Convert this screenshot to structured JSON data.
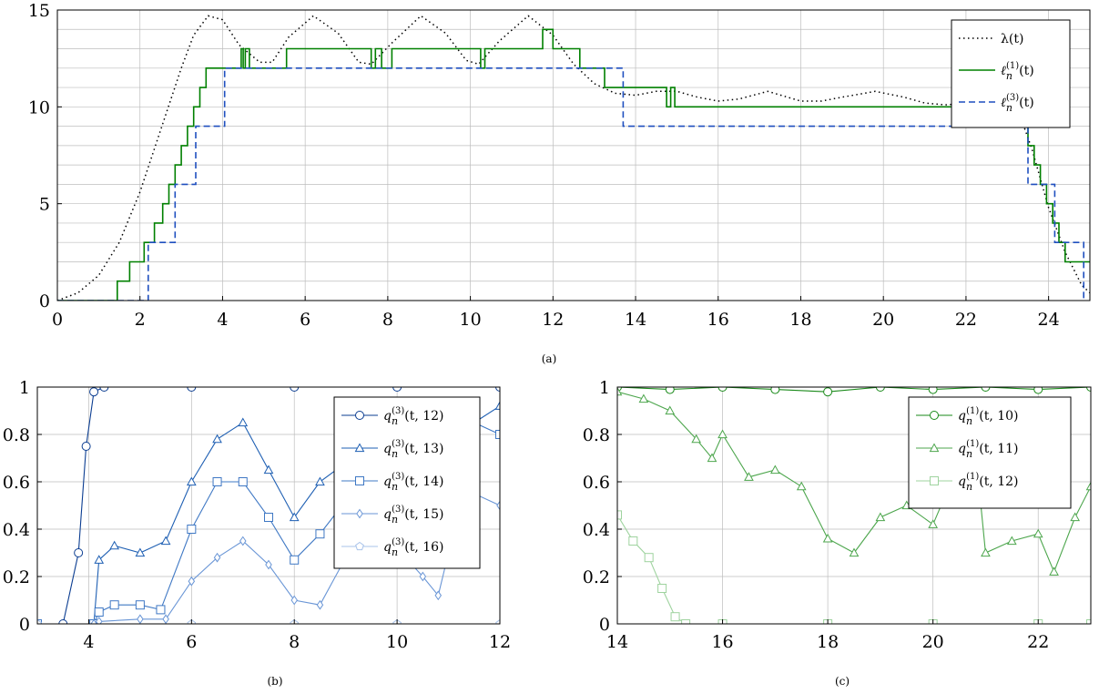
{
  "captions": {
    "a": "(a)",
    "b": "(b)",
    "c": "(c)"
  },
  "chart_data": [
    {
      "id": "a",
      "type": "line",
      "caption": "(a)",
      "xlim": [
        0,
        25
      ],
      "ylim": [
        0,
        15
      ],
      "xticks": [
        0,
        2,
        4,
        6,
        8,
        10,
        12,
        14,
        16,
        18,
        20,
        22,
        24
      ],
      "yticks": [
        0,
        5,
        10,
        15
      ],
      "grid": true,
      "legend_position": "top-right",
      "series": [
        {
          "name": "λ(t)",
          "style": "dotted",
          "color": "#000000",
          "x": [
            0,
            0.5,
            1,
            1.5,
            2,
            2.5,
            3,
            3.3,
            3.65,
            4,
            4.4,
            4.9,
            5.2,
            5.6,
            6.2,
            6.8,
            7.3,
            7.6,
            8.1,
            8.8,
            9.4,
            9.9,
            10.2,
            10.7,
            11.4,
            12,
            12.5,
            13,
            13.5,
            14,
            14.5,
            15,
            15.5,
            16,
            16.5,
            17.2,
            18,
            18.5,
            19,
            19.8,
            20.5,
            21,
            21.5,
            22,
            22.5,
            23,
            23.3,
            23.6,
            24,
            24.4,
            24.8,
            25
          ],
          "y": [
            0,
            0.4,
            1.3,
            3,
            5.6,
            8.8,
            12,
            13.7,
            14.7,
            14.5,
            13.2,
            12.3,
            12.3,
            13.6,
            14.7,
            13.8,
            12.3,
            12.2,
            13.3,
            14.7,
            13.8,
            12.4,
            12.2,
            13.4,
            14.7,
            13.7,
            12.2,
            11.2,
            10.7,
            10.6,
            10.8,
            10.8,
            10.5,
            10.3,
            10.4,
            10.8,
            10.3,
            10.3,
            10.5,
            10.8,
            10.5,
            10.2,
            10.1,
            10.2,
            10.4,
            10.6,
            9.6,
            7.8,
            4.8,
            2.5,
            0.8,
            0.4
          ]
        },
        {
          "name": "ℓn(1)(t)",
          "style": "solid",
          "color": "#008000",
          "x": [
            0,
            1.45,
            1.45,
            1.75,
            1.75,
            2.1,
            2.1,
            2.35,
            2.35,
            2.55,
            2.55,
            2.7,
            2.7,
            2.85,
            2.85,
            3,
            3,
            3.15,
            3.15,
            3.3,
            3.3,
            3.45,
            3.45,
            3.6,
            3.6,
            3.75,
            3.75,
            3.9,
            3.9,
            4.45,
            4.45,
            4.5,
            4.5,
            4.55,
            4.55,
            4.65,
            4.65,
            5.55,
            5.55,
            7.6,
            7.6,
            7.7,
            7.7,
            7.85,
            7.85,
            8.1,
            8.1,
            10.25,
            10.25,
            10.35,
            10.35,
            11.75,
            11.75,
            12,
            12,
            12.65,
            12.65,
            13.25,
            13.25,
            13.65,
            13.65,
            14.75,
            14.75,
            14.85,
            14.85,
            14.95,
            14.95,
            23.2,
            23.2,
            23.5,
            23.5,
            23.65,
            23.65,
            23.8,
            23.8,
            23.95,
            23.95,
            24.1,
            24.1,
            24.25,
            24.25,
            24.4,
            24.4,
            24.55,
            24.55,
            24.7,
            24.7,
            24.85,
            24.85,
            25
          ],
          "y": [
            0,
            0,
            1,
            1,
            2,
            2,
            3,
            3,
            4,
            4,
            5,
            5,
            6,
            6,
            7,
            7,
            8,
            8,
            9,
            9,
            10,
            10,
            11,
            11,
            12,
            12,
            12,
            12,
            12,
            12,
            13,
            13,
            12,
            12,
            13,
            13,
            12,
            12,
            13,
            13,
            12,
            12,
            13,
            13,
            12,
            12,
            13,
            13,
            12,
            12,
            13,
            13,
            14,
            14,
            13,
            13,
            12,
            12,
            11,
            11,
            11,
            11,
            10,
            10,
            11,
            11,
            10,
            10,
            9,
            9,
            8,
            8,
            7,
            7,
            6,
            6,
            5,
            5,
            4,
            4,
            3,
            3,
            2,
            2,
            2,
            2,
            2,
            2,
            2,
            2
          ]
        },
        {
          "name": "ℓn(3)(t)",
          "style": "dashed",
          "color": "#1f4fbf",
          "x": [
            0,
            2.2,
            2.2,
            2.85,
            2.85,
            3.35,
            3.35,
            4.05,
            4.05,
            13.7,
            13.7,
            23.5,
            23.5,
            24.15,
            24.15,
            24.85,
            24.85
          ],
          "y": [
            0,
            0,
            3,
            3,
            6,
            6,
            9,
            9,
            12,
            12,
            9,
            9,
            6,
            6,
            3,
            3,
            0
          ]
        }
      ]
    },
    {
      "id": "b",
      "type": "line",
      "caption": "(b)",
      "xlim": [
        3,
        12
      ],
      "ylim": [
        0,
        1
      ],
      "xticks": [
        4,
        6,
        8,
        10,
        12
      ],
      "yticks": [
        0,
        0.2,
        0.4,
        0.6,
        0.8,
        1
      ],
      "grid": true,
      "legend_position": "top-right",
      "series": [
        {
          "name": "qn(3)(t, 12)",
          "color": "#0b3d91",
          "marker": "circle",
          "x": [
            3,
            3.5,
            3.8,
            3.95,
            4.1,
            4.3,
            6,
            8,
            10,
            12
          ],
          "y": [
            0,
            0,
            0.3,
            0.75,
            0.98,
            1,
            1,
            1,
            1,
            1
          ]
        },
        {
          "name": "qn(3)(t, 13)",
          "color": "#1e5fb3",
          "marker": "triangle",
          "x": [
            3,
            4.1,
            4.2,
            4.5,
            5,
            5.5,
            6,
            6.5,
            7,
            7.5,
            8,
            8.5,
            9,
            9.5,
            10,
            10.5,
            11,
            11.5,
            12
          ],
          "y": [
            0,
            0,
            0.27,
            0.33,
            0.3,
            0.35,
            0.6,
            0.78,
            0.85,
            0.65,
            0.45,
            0.6,
            0.68,
            0.65,
            0.72,
            0.6,
            0.55,
            0.85,
            0.92
          ]
        },
        {
          "name": "qn(3)(t, 14)",
          "color": "#3f78c4",
          "marker": "square",
          "x": [
            3,
            4.1,
            4.2,
            4.5,
            5,
            5.4,
            6,
            6.5,
            7,
            7.5,
            8,
            8.5,
            9,
            9.5,
            10,
            10.5,
            11,
            11.5,
            12
          ],
          "y": [
            0,
            0,
            0.05,
            0.08,
            0.08,
            0.06,
            0.4,
            0.6,
            0.6,
            0.45,
            0.27,
            0.38,
            0.52,
            0.55,
            0.52,
            0.48,
            0.55,
            0.85,
            0.8
          ]
        },
        {
          "name": "qn(3)(t, 15)",
          "color": "#6a96d6",
          "marker": "diamond",
          "x": [
            3,
            4.1,
            4.2,
            5,
            5.5,
            6,
            6.5,
            7,
            7.5,
            8,
            8.5,
            9,
            9.5,
            10,
            10.5,
            10.8,
            11,
            11.5,
            12
          ],
          "y": [
            0,
            0,
            0.01,
            0.02,
            0.02,
            0.18,
            0.28,
            0.35,
            0.25,
            0.1,
            0.08,
            0.28,
            0.35,
            0.32,
            0.2,
            0.12,
            0.3,
            0.55,
            0.5
          ]
        },
        {
          "name": "qn(3)(t, 16)",
          "color": "#a8c3ea",
          "marker": "pentagon",
          "x": [
            3,
            6,
            8,
            10,
            12
          ],
          "y": [
            0,
            0,
            0,
            0,
            0
          ]
        }
      ]
    },
    {
      "id": "c",
      "type": "line",
      "caption": "(c)",
      "xlim": [
        14,
        23
      ],
      "ylim": [
        0,
        1
      ],
      "xticks": [
        14,
        16,
        18,
        20,
        22
      ],
      "yticks": [
        0,
        0.2,
        0.4,
        0.6,
        0.8,
        1
      ],
      "grid": true,
      "legend_position": "top-right",
      "series": [
        {
          "name": "qn(1)(t, 10)",
          "color": "#1a8a1a",
          "marker": "circle",
          "x": [
            14,
            15,
            16,
            17,
            18,
            19,
            20,
            21,
            22,
            23
          ],
          "y": [
            1,
            0.99,
            1,
            0.99,
            0.98,
            1,
            0.99,
            1,
            0.99,
            1
          ]
        },
        {
          "name": "qn(1)(t, 11)",
          "color": "#4da64d",
          "marker": "triangle",
          "x": [
            14,
            14.5,
            15,
            15.5,
            15.8,
            16,
            16.5,
            17,
            17.5,
            18,
            18.5,
            19,
            19.5,
            20,
            20.5,
            20.8,
            21,
            21.5,
            22,
            22.3,
            22.7,
            23
          ],
          "y": [
            0.98,
            0.95,
            0.9,
            0.78,
            0.7,
            0.8,
            0.62,
            0.65,
            0.58,
            0.36,
            0.3,
            0.45,
            0.5,
            0.42,
            0.68,
            0.75,
            0.3,
            0.35,
            0.38,
            0.22,
            0.45,
            0.58
          ]
        },
        {
          "name": "qn(1)(t, 12)",
          "color": "#9fd39f",
          "marker": "square",
          "x": [
            14,
            14.3,
            14.6,
            14.85,
            15.1,
            15.3,
            16,
            18,
            20,
            22,
            23
          ],
          "y": [
            0.46,
            0.35,
            0.28,
            0.15,
            0.03,
            0,
            0,
            0,
            0,
            0,
            0
          ]
        }
      ]
    }
  ]
}
